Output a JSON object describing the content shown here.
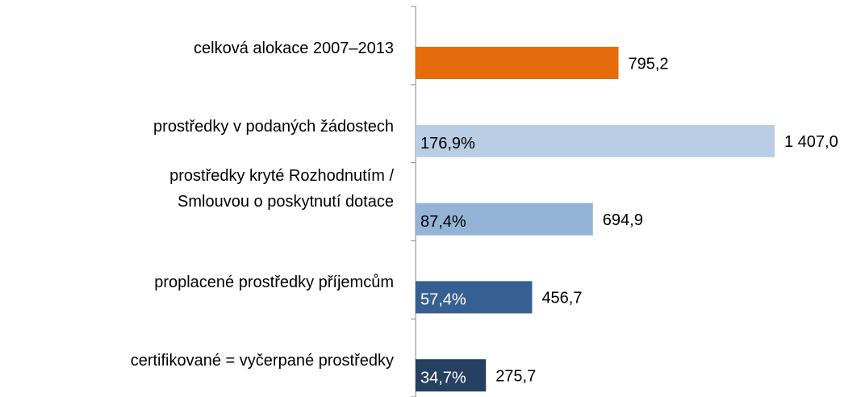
{
  "chart_data": {
    "type": "barh",
    "categories": [
      "celková alokace 2007–2013",
      "prostředky v podaných žádostech",
      "prostředky kryté Rozhodnutím  /\nSmlouvou o poskytnutí  dotace",
      "proplacené prostředky příjemcům",
      "certifikované = vyčerpané prostředky"
    ],
    "values": [
      795.2,
      1407.0,
      694.9,
      456.7,
      275.7
    ],
    "value_labels": [
      "795,2",
      "1 407,0",
      "694,9",
      "456,7",
      "275,7"
    ],
    "share_labels": [
      null,
      "176,9%",
      "87,4%",
      "57,4%",
      "34,7%"
    ],
    "colors": [
      "#e46c0a",
      "#b9cde5",
      "#95b3d7",
      "#376092",
      "#254061"
    ]
  }
}
